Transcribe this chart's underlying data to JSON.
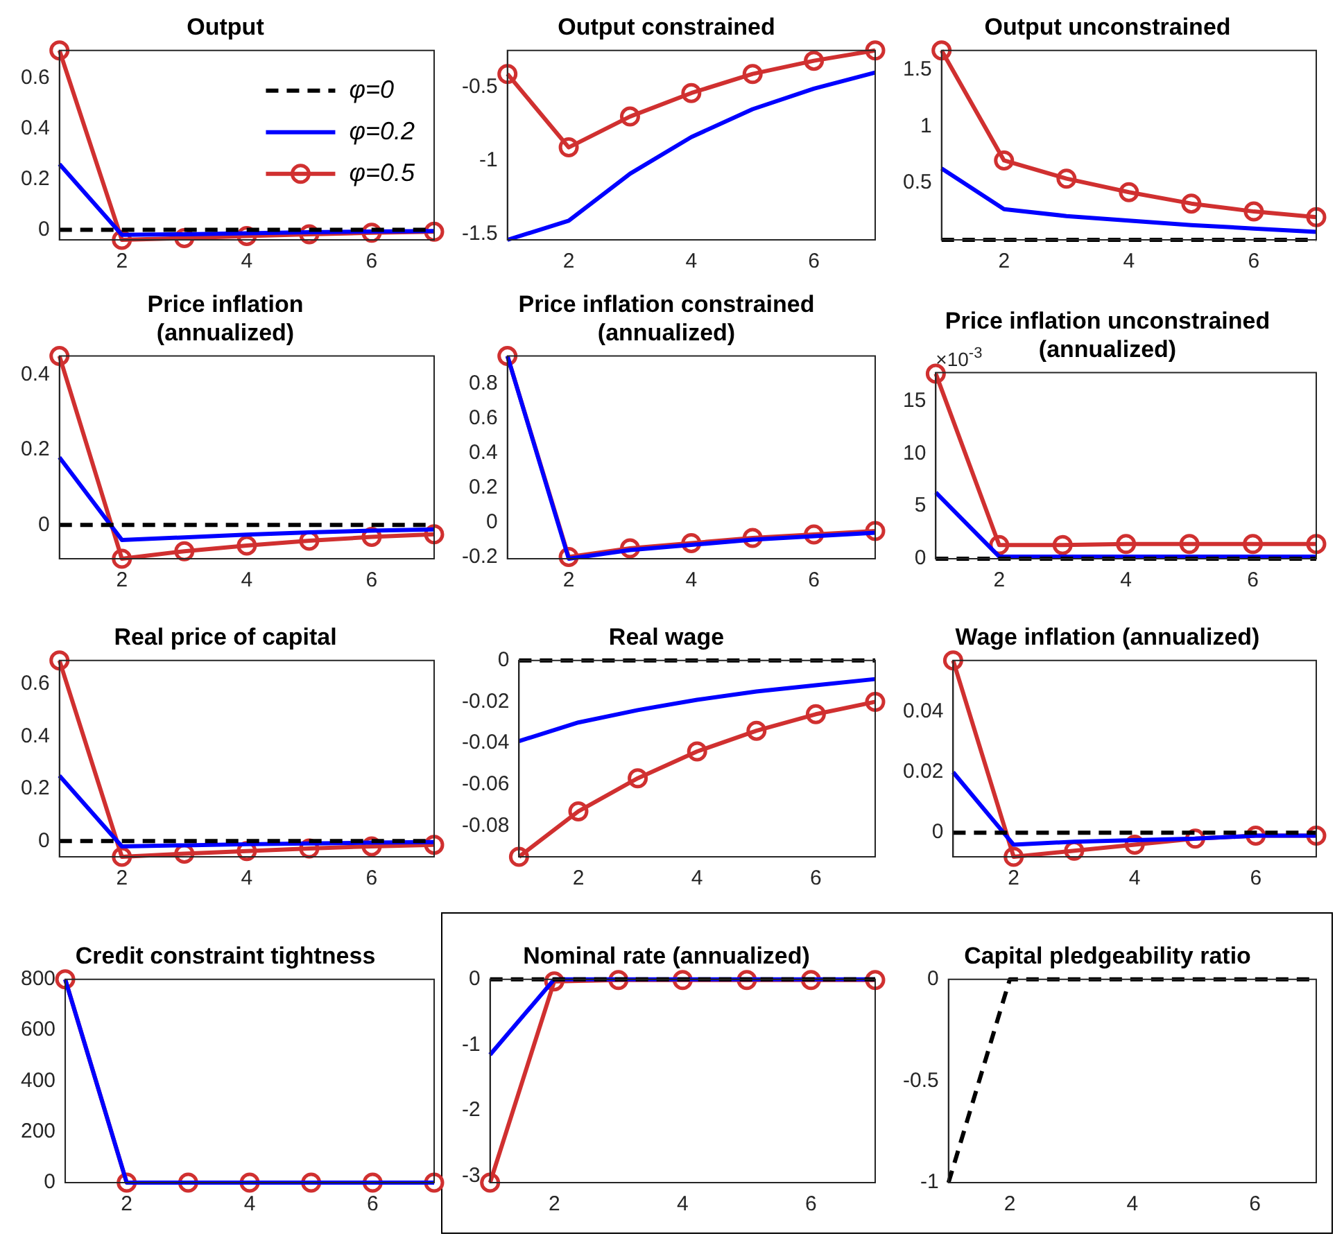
{
  "chart_data": [
    {
      "type": "line",
      "title": "Output",
      "x": [
        1,
        2,
        3,
        4,
        5,
        6,
        7
      ],
      "xlim": [
        1,
        7
      ],
      "xticks": [
        2,
        4,
        6
      ],
      "ylim": [
        -0.04,
        0.71
      ],
      "yticks": [
        0,
        0.2,
        0.4,
        0.6
      ],
      "legend": "top right",
      "series": [
        {
          "name": "φ=0",
          "color": "#000000",
          "line_style": "dashed",
          "marker": "none",
          "values": [
            0,
            0,
            0,
            0,
            0,
            0,
            0
          ]
        },
        {
          "name": "φ=0.2",
          "color": "#0000ff",
          "line_style": "solid",
          "marker": "none",
          "values": [
            0.26,
            -0.02,
            -0.018,
            -0.014,
            -0.01,
            -0.007,
            -0.005
          ]
        },
        {
          "name": "φ=0.5",
          "color": "#d03030",
          "line_style": "solid",
          "marker": "circle",
          "values": [
            0.71,
            -0.04,
            -0.033,
            -0.025,
            -0.018,
            -0.012,
            -0.008
          ]
        }
      ]
    },
    {
      "type": "line",
      "title": "Output constrained",
      "x": [
        1,
        2,
        3,
        4,
        5,
        6,
        7
      ],
      "xlim": [
        1,
        7
      ],
      "xticks": [
        2,
        4,
        6
      ],
      "ylim": [
        -1.54,
        -0.25
      ],
      "yticks": [
        -1.5,
        -1,
        -0.5
      ],
      "series": [
        {
          "color": "#0000ff",
          "line_style": "solid",
          "marker": "none",
          "values": [
            -1.54,
            -1.41,
            -1.09,
            -0.84,
            -0.65,
            -0.51,
            -0.4
          ]
        },
        {
          "color": "#d03030",
          "line_style": "solid",
          "marker": "circle",
          "values": [
            -0.41,
            -0.91,
            -0.7,
            -0.54,
            -0.41,
            -0.32,
            -0.25
          ]
        }
      ]
    },
    {
      "type": "line",
      "title": "Output unconstrained",
      "x": [
        1,
        2,
        3,
        4,
        5,
        6,
        7
      ],
      "xlim": [
        1,
        7
      ],
      "xticks": [
        2,
        4,
        6
      ],
      "ylim": [
        0,
        1.67
      ],
      "yticks": [
        0.5,
        1,
        1.5
      ],
      "series": [
        {
          "color": "#000000",
          "line_style": "dashed",
          "marker": "none",
          "values": [
            0,
            0,
            0,
            0,
            0,
            0,
            0
          ]
        },
        {
          "color": "#0000ff",
          "line_style": "solid",
          "marker": "none",
          "values": [
            0.63,
            0.27,
            0.21,
            0.17,
            0.13,
            0.1,
            0.07
          ]
        },
        {
          "color": "#d03030",
          "line_style": "solid",
          "marker": "circle",
          "values": [
            1.67,
            0.7,
            0.54,
            0.42,
            0.32,
            0.25,
            0.2
          ]
        }
      ]
    },
    {
      "type": "line",
      "title": "Price inflation\n(annualized)",
      "x": [
        1,
        2,
        3,
        4,
        5,
        6,
        7
      ],
      "xlim": [
        1,
        7
      ],
      "xticks": [
        2,
        4,
        6
      ],
      "ylim": [
        -0.09,
        0.45
      ],
      "yticks": [
        0,
        0.2,
        0.4
      ],
      "series": [
        {
          "color": "#000000",
          "line_style": "dashed",
          "marker": "none",
          "values": [
            0,
            0,
            0,
            0,
            0,
            0,
            0
          ]
        },
        {
          "color": "#0000ff",
          "line_style": "solid",
          "marker": "none",
          "values": [
            0.18,
            -0.04,
            -0.033,
            -0.026,
            -0.02,
            -0.015,
            -0.012
          ]
        },
        {
          "color": "#d03030",
          "line_style": "solid",
          "marker": "circle",
          "values": [
            0.45,
            -0.09,
            -0.07,
            -0.055,
            -0.042,
            -0.032,
            -0.025
          ]
        }
      ]
    },
    {
      "type": "line",
      "title": "Price inflation constrained\n(annualized)",
      "x": [
        1,
        2,
        3,
        4,
        5,
        6,
        7
      ],
      "xlim": [
        1,
        7
      ],
      "xticks": [
        2,
        4,
        6
      ],
      "ylim": [
        -0.21,
        0.96
      ],
      "yticks": [
        -0.2,
        0,
        0.2,
        0.4,
        0.6,
        0.8
      ],
      "series": [
        {
          "color": "#0000ff",
          "line_style": "solid",
          "marker": "none",
          "values": [
            0.96,
            -0.21,
            -0.16,
            -0.13,
            -0.1,
            -0.08,
            -0.06
          ]
        },
        {
          "color": "#d03030",
          "line_style": "solid",
          "marker": "circle",
          "values": [
            0.96,
            -0.2,
            -0.15,
            -0.12,
            -0.09,
            -0.07,
            -0.05
          ]
        }
      ]
    },
    {
      "type": "line",
      "title": "Price inflation unconstrained\n(annualized)",
      "annotations": [
        "×10$^{-3}$"
      ],
      "x": [
        1,
        2,
        3,
        4,
        5,
        6,
        7
      ],
      "xlim": [
        1,
        7
      ],
      "xticks": [
        2,
        4,
        6
      ],
      "ylim": [
        0,
        17.7
      ],
      "yticks": [
        0,
        5,
        10,
        15
      ],
      "series": [
        {
          "color": "#000000",
          "line_style": "dashed",
          "marker": "none",
          "values": [
            0,
            0,
            0,
            0,
            0,
            0,
            0
          ]
        },
        {
          "color": "#0000ff",
          "line_style": "solid",
          "marker": "none",
          "values": [
            6.3,
            0.2,
            0.2,
            0.2,
            0.2,
            0.2,
            0.2
          ]
        },
        {
          "color": "#d03030",
          "line_style": "solid",
          "marker": "circle",
          "values": [
            17.6,
            1.3,
            1.3,
            1.4,
            1.4,
            1.4,
            1.4
          ]
        }
      ]
    },
    {
      "type": "line",
      "title": "Real price of capital",
      "x": [
        1,
        2,
        3,
        4,
        5,
        6,
        7
      ],
      "xlim": [
        1,
        7
      ],
      "xticks": [
        2,
        4,
        6
      ],
      "ylim": [
        -0.06,
        0.69
      ],
      "yticks": [
        0,
        0.2,
        0.4,
        0.6
      ],
      "series": [
        {
          "color": "#000000",
          "line_style": "dashed",
          "marker": "none",
          "values": [
            0,
            0,
            0,
            0,
            0,
            0,
            0
          ]
        },
        {
          "color": "#0000ff",
          "line_style": "solid",
          "marker": "none",
          "values": [
            0.25,
            -0.02,
            -0.016,
            -0.012,
            -0.009,
            -0.006,
            -0.004
          ]
        },
        {
          "color": "#d03030",
          "line_style": "solid",
          "marker": "circle",
          "values": [
            0.69,
            -0.06,
            -0.048,
            -0.038,
            -0.028,
            -0.02,
            -0.014
          ]
        }
      ]
    },
    {
      "type": "line",
      "title": "Real wage",
      "x": [
        1,
        2,
        3,
        4,
        5,
        6,
        7
      ],
      "xlim": [
        1,
        7
      ],
      "xticks": [
        2,
        4,
        6
      ],
      "ylim": [
        -0.095,
        0
      ],
      "yticks": [
        -0.08,
        -0.06,
        -0.04,
        -0.02,
        0
      ],
      "series": [
        {
          "color": "#000000",
          "line_style": "dashed",
          "marker": "none",
          "values": [
            0,
            0,
            0,
            0,
            0,
            0,
            0
          ]
        },
        {
          "color": "#0000ff",
          "line_style": "solid",
          "marker": "none",
          "values": [
            -0.039,
            -0.03,
            -0.024,
            -0.019,
            -0.015,
            -0.012,
            -0.009
          ]
        },
        {
          "color": "#d03030",
          "line_style": "solid",
          "marker": "circle",
          "values": [
            -0.095,
            -0.073,
            -0.057,
            -0.044,
            -0.034,
            -0.026,
            -0.02
          ]
        }
      ]
    },
    {
      "type": "line",
      "title": "Wage inflation (annualized)",
      "x": [
        1,
        2,
        3,
        4,
        5,
        6,
        7
      ],
      "xlim": [
        1,
        7
      ],
      "xticks": [
        2,
        4,
        6
      ],
      "ylim": [
        -0.008,
        0.057
      ],
      "yticks": [
        0,
        0.02,
        0.04
      ],
      "series": [
        {
          "color": "#000000",
          "line_style": "dashed",
          "marker": "none",
          "values": [
            0,
            0,
            0,
            0,
            0,
            0,
            0
          ]
        },
        {
          "color": "#0000ff",
          "line_style": "solid",
          "marker": "none",
          "values": [
            0.02,
            -0.004,
            -0.003,
            -0.0025,
            -0.002,
            -0.001,
            -0.001
          ]
        },
        {
          "color": "#d03030",
          "line_style": "solid",
          "marker": "circle",
          "values": [
            0.057,
            -0.008,
            -0.006,
            -0.004,
            -0.002,
            -0.001,
            -0.001
          ]
        }
      ]
    },
    {
      "type": "line",
      "title": "Credit constraint tightness",
      "x": [
        1,
        2,
        3,
        4,
        5,
        6,
        7
      ],
      "xlim": [
        1,
        7
      ],
      "xticks": [
        2,
        4,
        6
      ],
      "ylim": [
        0,
        800
      ],
      "yticks": [
        0,
        200,
        400,
        600,
        800
      ],
      "series": [
        {
          "color": "#0000ff",
          "line_style": "solid",
          "marker": "none",
          "values": [
            800,
            0,
            0,
            0,
            0,
            0,
            0
          ]
        },
        {
          "color": "#d03030",
          "line_style": "solid",
          "marker": "circle",
          "values": [
            800,
            0,
            0,
            0,
            0,
            0,
            0
          ]
        }
      ]
    },
    {
      "type": "line",
      "title": "Nominal rate (annualized)",
      "x": [
        1,
        2,
        3,
        4,
        5,
        6,
        7
      ],
      "xlim": [
        1,
        7
      ],
      "xticks": [
        2,
        4,
        6
      ],
      "ylim": [
        -3.1,
        0
      ],
      "yticks": [
        -3,
        -2,
        -1,
        0
      ],
      "series": [
        {
          "color": "#000000",
          "line_style": "dashed",
          "marker": "none",
          "values": [
            0,
            0,
            0,
            0,
            0,
            0,
            0
          ]
        },
        {
          "color": "#0000ff",
          "line_style": "solid",
          "marker": "none",
          "values": [
            -1.15,
            0,
            0,
            0,
            0,
            0,
            0
          ]
        },
        {
          "color": "#d03030",
          "line_style": "solid",
          "marker": "circle",
          "values": [
            -3.1,
            -0.03,
            -0.01,
            -0.01,
            -0.01,
            -0.01,
            -0.01
          ]
        }
      ]
    },
    {
      "type": "line",
      "title": "Capital pledgeability ratio",
      "x": [
        1,
        2,
        3,
        4,
        5,
        6,
        7
      ],
      "xlim": [
        1,
        7
      ],
      "xticks": [
        2,
        4,
        6
      ],
      "ylim": [
        -1,
        0
      ],
      "yticks": [
        -1,
        -0.5,
        0
      ],
      "series": [
        {
          "color": "#000000",
          "line_style": "dashed",
          "marker": "none",
          "values": [
            -1,
            0,
            0,
            0,
            0,
            0,
            0
          ]
        }
      ]
    }
  ]
}
